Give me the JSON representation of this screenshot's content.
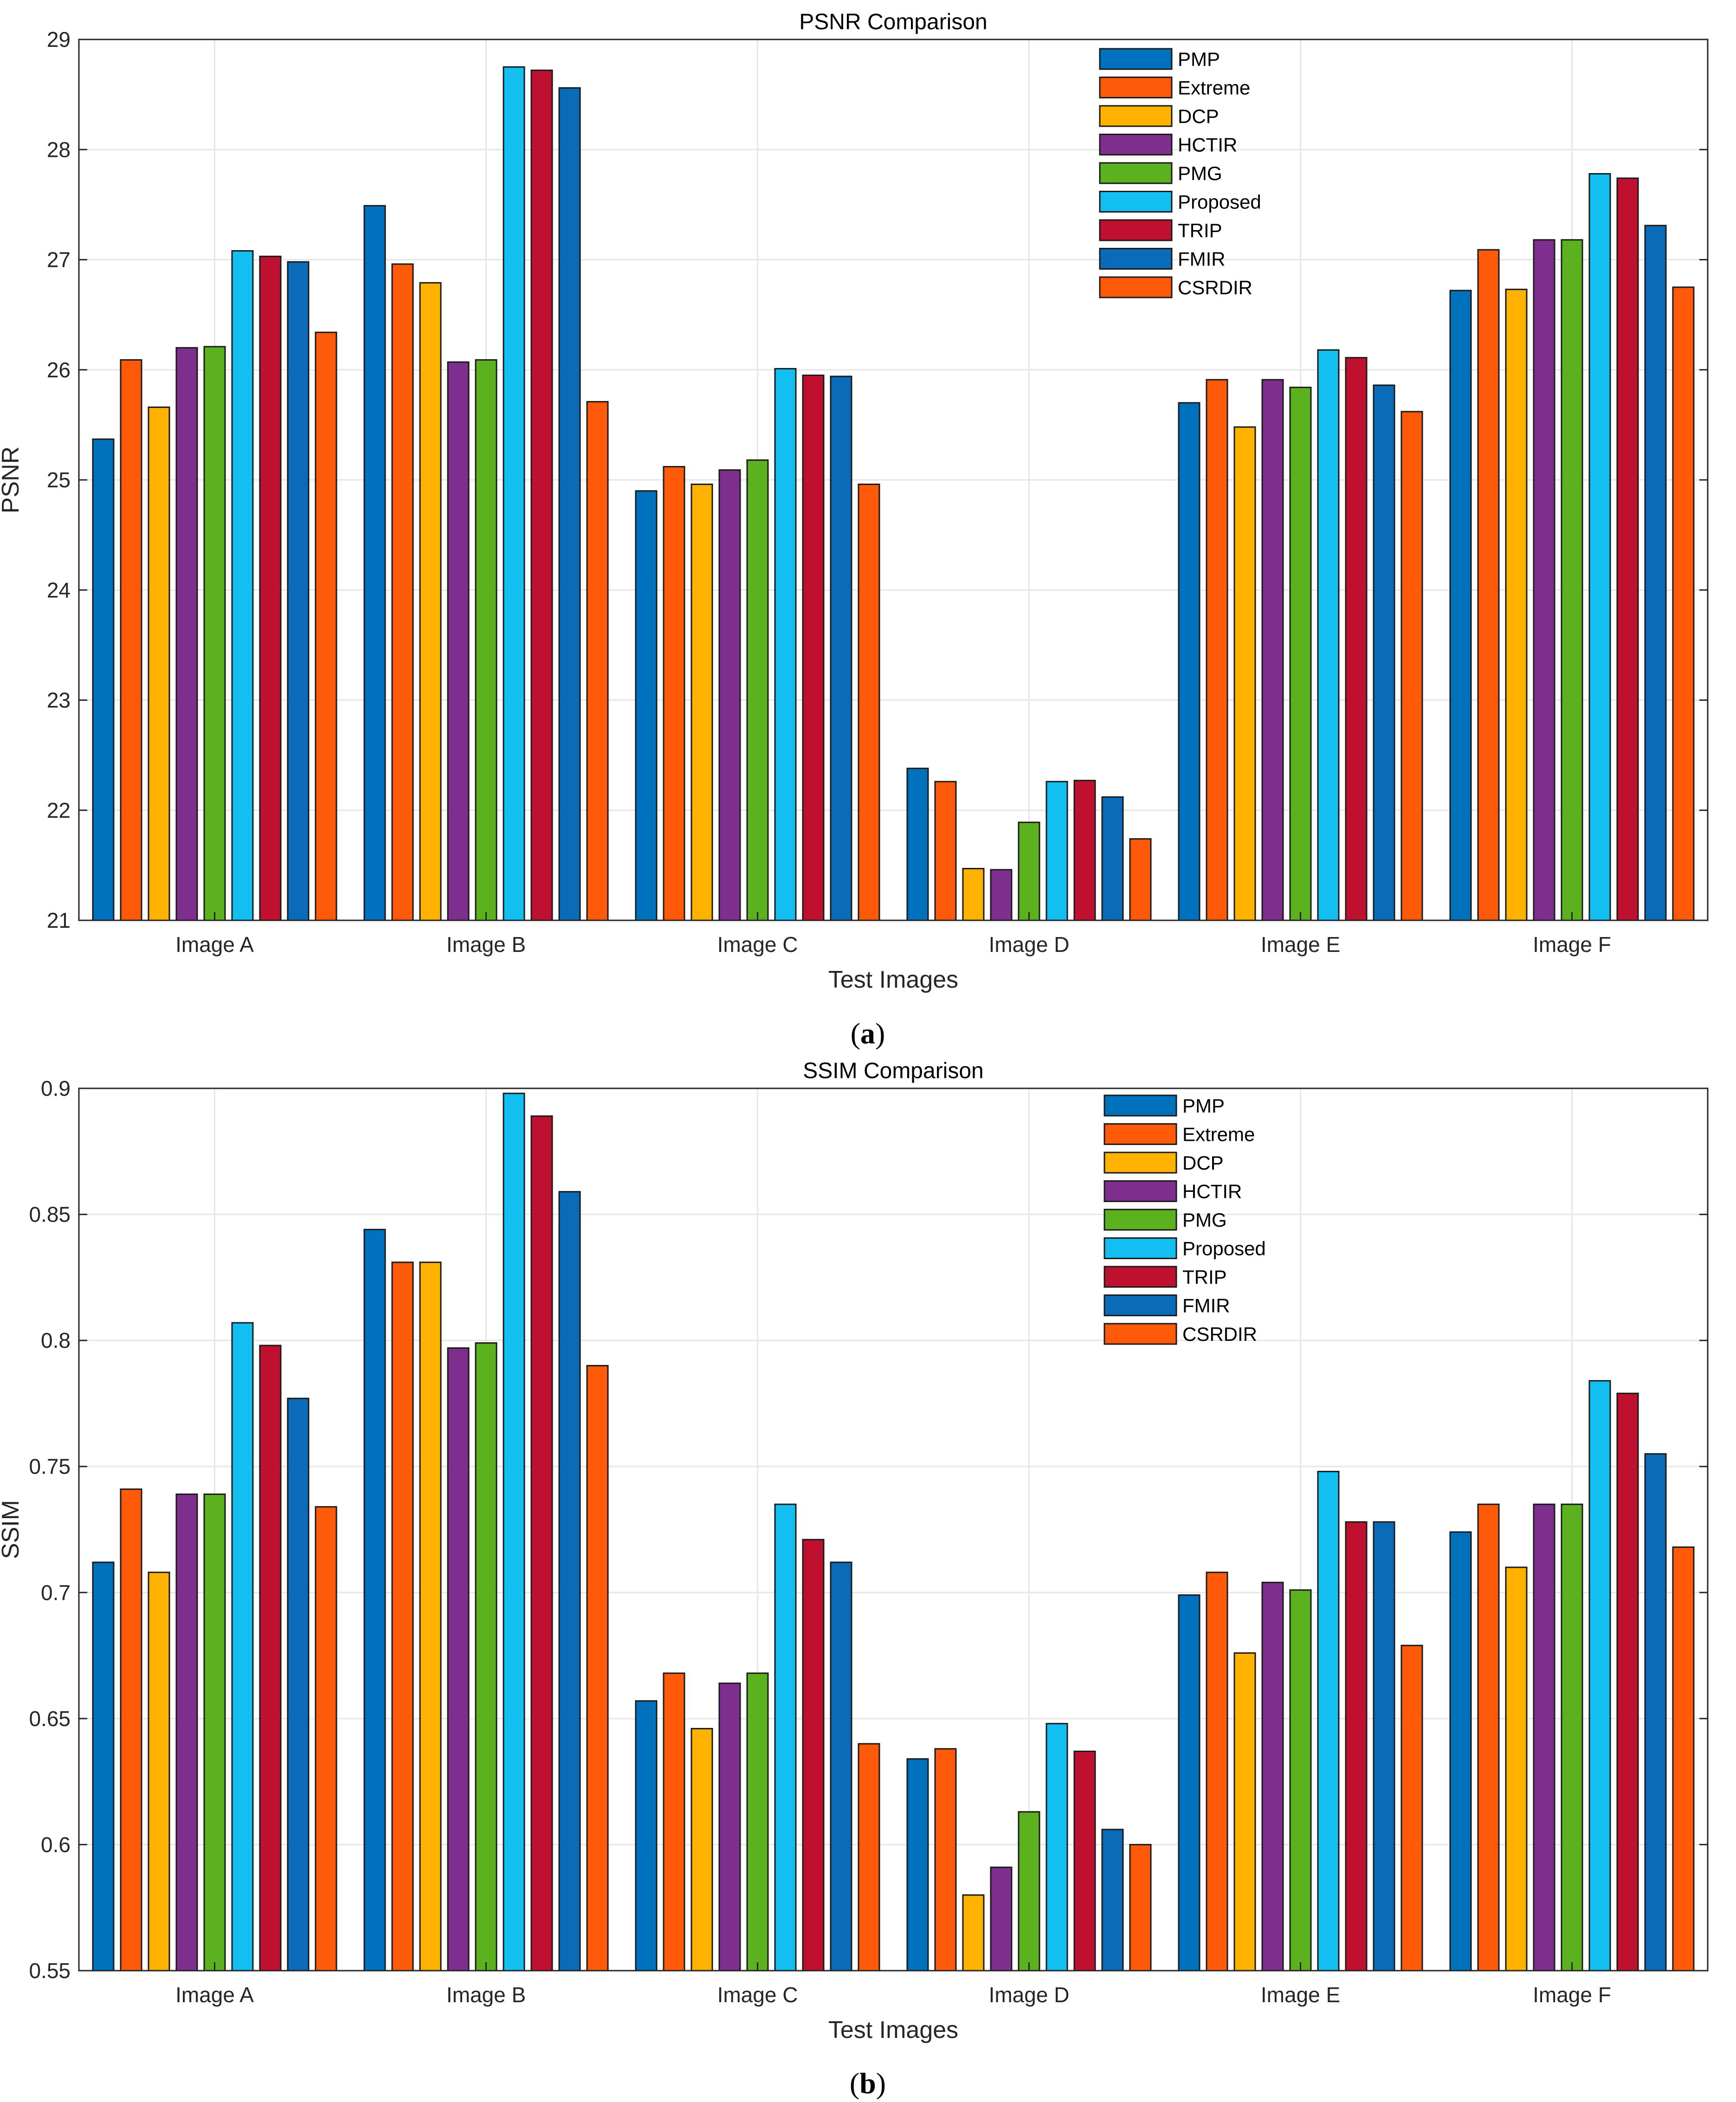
{
  "figure": {
    "panels": [
      {
        "label_open": "(",
        "label_letter": "a",
        "label_close": ")"
      },
      {
        "label_open": "(",
        "label_letter": "b",
        "label_close": ")"
      }
    ]
  },
  "colors": {
    "PMP": "#0072BD",
    "Extreme": "#FF5A0A",
    "DCP": "#FFB200",
    "HCTIR": "#7E2F8E",
    "PMG": "#5BB21E",
    "Proposed": "#13BEF0",
    "TRIP": "#C0102F",
    "FMIR": "#0A6BB8",
    "CSRDIR": "#FF5A0A"
  },
  "chart_data": [
    {
      "type": "bar",
      "title": "PSNR Comparison",
      "xlabel": "Test Images",
      "ylabel": "PSNR",
      "ylim": [
        21,
        29
      ],
      "yticks": [
        21,
        22,
        23,
        24,
        25,
        26,
        27,
        28,
        29
      ],
      "ytick_labels": [
        "21",
        "22",
        "23",
        "24",
        "25",
        "26",
        "27",
        "28",
        "29"
      ],
      "grid": true,
      "legend_position": "top-right",
      "categories": [
        "Image A",
        "Image B",
        "Image C",
        "Image D",
        "Image E",
        "Image F"
      ],
      "series": [
        {
          "name": "PMP",
          "values": [
            25.37,
            27.49,
            24.9,
            22.38,
            25.7,
            26.72
          ]
        },
        {
          "name": "Extreme",
          "values": [
            26.09,
            26.96,
            25.12,
            22.26,
            25.91,
            27.09
          ]
        },
        {
          "name": "DCP",
          "values": [
            25.66,
            26.79,
            24.96,
            21.47,
            25.48,
            26.73
          ]
        },
        {
          "name": "HCTIR",
          "values": [
            26.2,
            26.07,
            25.09,
            21.46,
            25.91,
            27.18
          ]
        },
        {
          "name": "PMG",
          "values": [
            26.21,
            26.09,
            25.18,
            21.89,
            25.84,
            27.18
          ]
        },
        {
          "name": "Proposed",
          "values": [
            27.08,
            28.75,
            26.01,
            22.26,
            26.18,
            27.78
          ]
        },
        {
          "name": "TRIP",
          "values": [
            27.03,
            28.72,
            25.95,
            22.27,
            26.11,
            27.74
          ]
        },
        {
          "name": "FMIR",
          "values": [
            26.98,
            28.56,
            25.94,
            22.12,
            25.86,
            27.31
          ]
        },
        {
          "name": "CSRDIR",
          "values": [
            26.34,
            25.71,
            24.96,
            21.74,
            25.62,
            26.75
          ]
        }
      ]
    },
    {
      "type": "bar",
      "title": "SSIM Comparison",
      "xlabel": "Test Images",
      "ylabel": "SSIM",
      "ylim": [
        0.55,
        0.9
      ],
      "yticks": [
        0.55,
        0.6,
        0.65,
        0.7,
        0.75,
        0.8,
        0.85,
        0.9
      ],
      "ytick_labels": [
        "0.55",
        "0.6",
        "0.65",
        "0.7",
        "0.75",
        "0.8",
        "0.85",
        "0.9"
      ],
      "grid": true,
      "legend_position": "top-right",
      "categories": [
        "Image A",
        "Image B",
        "Image C",
        "Image D",
        "Image E",
        "Image F"
      ],
      "series": [
        {
          "name": "PMP",
          "values": [
            0.712,
            0.844,
            0.657,
            0.634,
            0.699,
            0.724
          ]
        },
        {
          "name": "Extreme",
          "values": [
            0.741,
            0.831,
            0.668,
            0.638,
            0.708,
            0.735
          ]
        },
        {
          "name": "DCP",
          "values": [
            0.708,
            0.831,
            0.646,
            0.58,
            0.676,
            0.71
          ]
        },
        {
          "name": "HCTIR",
          "values": [
            0.739,
            0.797,
            0.664,
            0.591,
            0.704,
            0.735
          ]
        },
        {
          "name": "PMG",
          "values": [
            0.739,
            0.799,
            0.668,
            0.613,
            0.701,
            0.735
          ]
        },
        {
          "name": "Proposed",
          "values": [
            0.807,
            0.898,
            0.735,
            0.648,
            0.748,
            0.784
          ]
        },
        {
          "name": "TRIP",
          "values": [
            0.798,
            0.889,
            0.721,
            0.637,
            0.728,
            0.779
          ]
        },
        {
          "name": "FMIR",
          "values": [
            0.777,
            0.859,
            0.712,
            0.606,
            0.728,
            0.755
          ]
        },
        {
          "name": "CSRDIR",
          "values": [
            0.734,
            0.79,
            0.64,
            0.6,
            0.679,
            0.718
          ]
        }
      ]
    }
  ]
}
